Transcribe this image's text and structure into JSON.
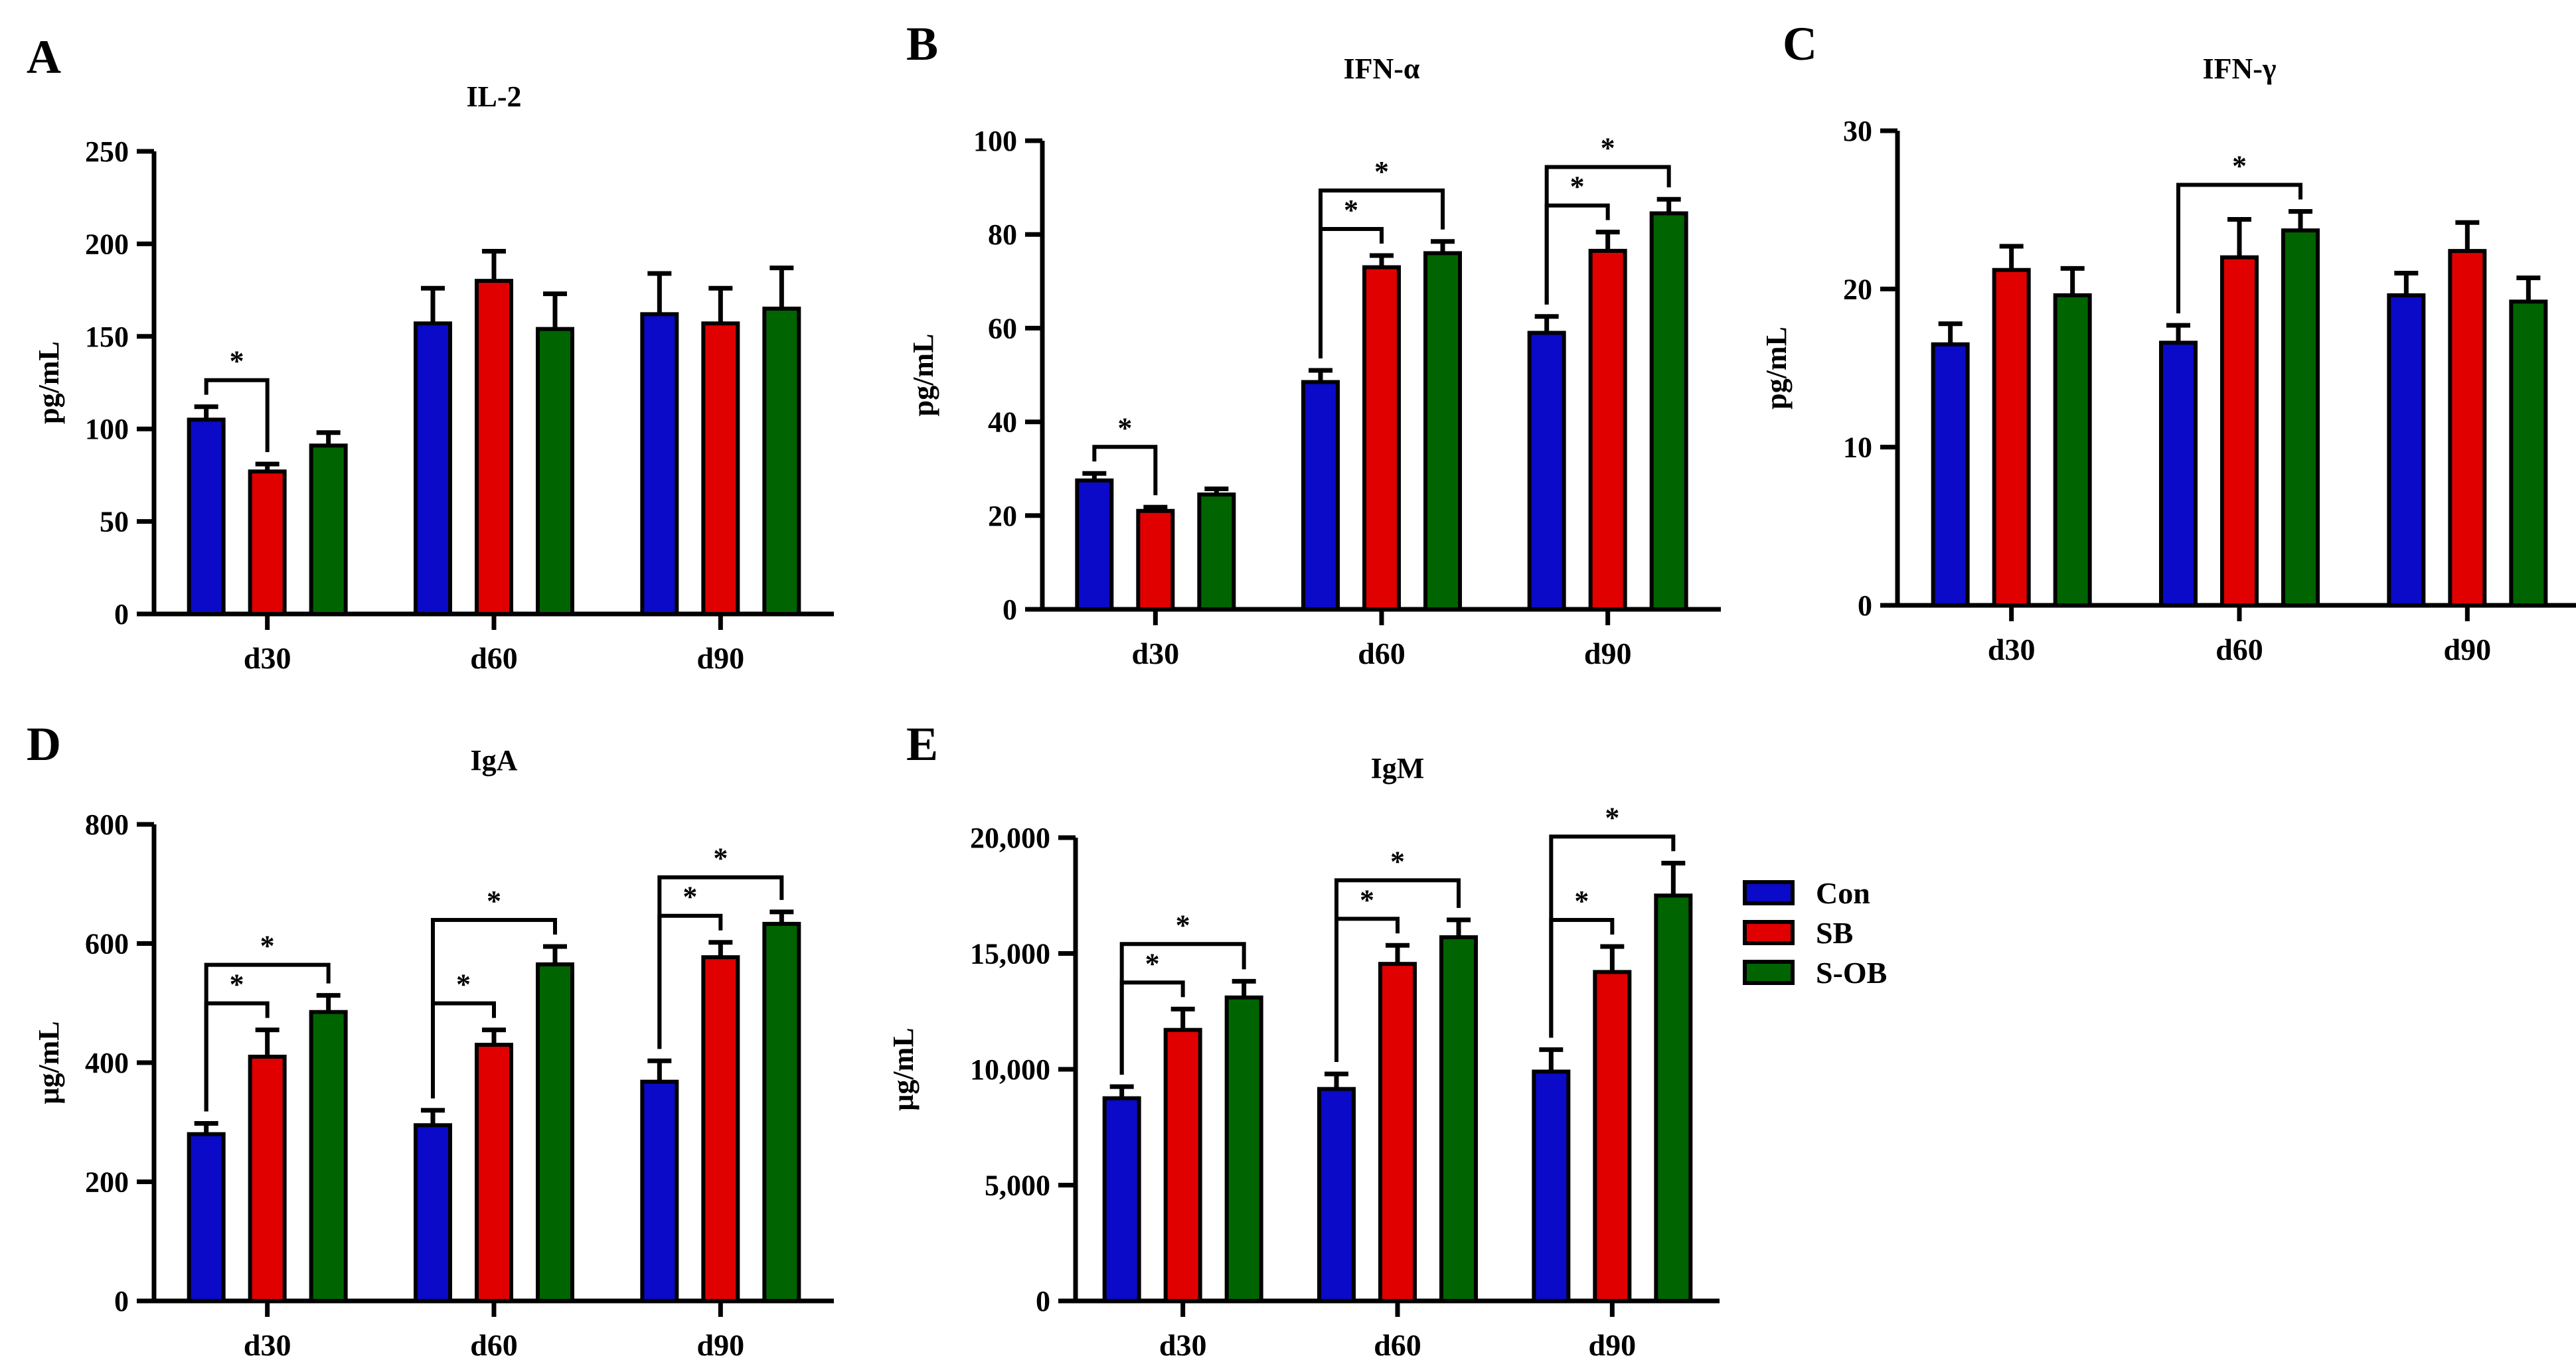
{
  "legend": [
    {
      "label": "Con",
      "color": "#0a0ac8"
    },
    {
      "label": "SB",
      "color": "#e00000"
    },
    {
      "label": "S-OB",
      "color": "#006400"
    }
  ],
  "chart_data": [
    {
      "type": "bar",
      "panel": "A",
      "title": "IL-2",
      "ylabel": "pg/mL",
      "categories": [
        "d30",
        "d60",
        "d90"
      ],
      "ylim": [
        0,
        250
      ],
      "yticks": [
        0,
        50,
        100,
        150,
        200,
        250
      ],
      "ytick_labels": [
        "0",
        "50",
        "100",
        "150",
        "200",
        "250"
      ],
      "series": [
        {
          "name": "Con",
          "values": [
            105,
            157,
            162
          ],
          "errors": [
            7,
            19,
            22
          ]
        },
        {
          "name": "SB",
          "values": [
            77,
            180,
            157
          ],
          "errors": [
            4,
            16,
            19
          ]
        },
        {
          "name": "S-OB",
          "values": [
            91,
            154,
            165
          ],
          "errors": [
            7,
            19,
            22
          ]
        }
      ],
      "significance": [
        {
          "category": "d30",
          "from": "Con",
          "to": "SB",
          "label": "*"
        }
      ]
    },
    {
      "type": "bar",
      "panel": "B",
      "title": "IFN-α",
      "ylabel": "pg/mL",
      "categories": [
        "d30",
        "d60",
        "d90"
      ],
      "ylim": [
        0,
        100
      ],
      "yticks": [
        0,
        20,
        40,
        60,
        80,
        100
      ],
      "ytick_labels": [
        "0",
        "20",
        "40",
        "60",
        "80",
        "100"
      ],
      "series": [
        {
          "name": "Con",
          "values": [
            27.5,
            48.5,
            59
          ],
          "errors": [
            1.5,
            2.5,
            3.5
          ]
        },
        {
          "name": "SB",
          "values": [
            21,
            73,
            76.5
          ],
          "errors": [
            0.8,
            2.5,
            4
          ]
        },
        {
          "name": "S-OB",
          "values": [
            24.5,
            76,
            84.5
          ],
          "errors": [
            1.2,
            2.5,
            3
          ]
        }
      ],
      "significance": [
        {
          "category": "d30",
          "from": "Con",
          "to": "SB",
          "label": "*"
        },
        {
          "category": "d60",
          "from": "Con",
          "to": "SB",
          "label": "*"
        },
        {
          "category": "d60",
          "from": "Con",
          "to": "S-OB",
          "label": "*"
        },
        {
          "category": "d90",
          "from": "Con",
          "to": "SB",
          "label": "*"
        },
        {
          "category": "d90",
          "from": "Con",
          "to": "S-OB",
          "label": "*"
        }
      ]
    },
    {
      "type": "bar",
      "panel": "C",
      "title": "IFN-γ",
      "ylabel": "pg/mL",
      "categories": [
        "d30",
        "d60",
        "d90"
      ],
      "ylim": [
        0,
        30
      ],
      "yticks": [
        0,
        10,
        20,
        30
      ],
      "ytick_labels": [
        "0",
        "10",
        "20",
        "30"
      ],
      "series": [
        {
          "name": "Con",
          "values": [
            16.5,
            16.6,
            19.6
          ],
          "errors": [
            1.3,
            1.1,
            1.4
          ]
        },
        {
          "name": "SB",
          "values": [
            21.2,
            22,
            22.4
          ],
          "errors": [
            1.5,
            2.4,
            1.8
          ]
        },
        {
          "name": "S-OB",
          "values": [
            19.6,
            23.7,
            19.2
          ],
          "errors": [
            1.7,
            1.2,
            1.5
          ]
        }
      ],
      "significance": [
        {
          "category": "d60",
          "from": "Con",
          "to": "S-OB",
          "label": "*"
        }
      ]
    },
    {
      "type": "bar",
      "panel": "D",
      "title": "IgA",
      "ylabel": "μg/mL",
      "categories": [
        "d30",
        "d60",
        "d90"
      ],
      "ylim": [
        0,
        800
      ],
      "yticks": [
        0,
        200,
        400,
        600,
        800
      ],
      "ytick_labels": [
        "0",
        "200",
        "400",
        "600",
        "800"
      ],
      "series": [
        {
          "name": "Con",
          "values": [
            280,
            295,
            368
          ],
          "errors": [
            18,
            25,
            35
          ]
        },
        {
          "name": "SB",
          "values": [
            410,
            430,
            577
          ],
          "errors": [
            45,
            25,
            25
          ]
        },
        {
          "name": "S-OB",
          "values": [
            485,
            565,
            633
          ],
          "errors": [
            28,
            30,
            20
          ]
        }
      ],
      "significance": [
        {
          "category": "d30",
          "from": "Con",
          "to": "SB",
          "label": "*"
        },
        {
          "category": "d30",
          "from": "Con",
          "to": "S-OB",
          "label": "*"
        },
        {
          "category": "d60",
          "from": "Con",
          "to": "SB",
          "label": "*"
        },
        {
          "category": "d60",
          "from": "Con",
          "to": "S-OB",
          "label": "*"
        },
        {
          "category": "d90",
          "from": "Con",
          "to": "SB",
          "label": "*"
        },
        {
          "category": "d90",
          "from": "Con",
          "to": "S-OB",
          "label": "*"
        }
      ]
    },
    {
      "type": "bar",
      "panel": "E",
      "title": "IgM",
      "ylabel": "μg/mL",
      "categories": [
        "d30",
        "d60",
        "d90"
      ],
      "ylim": [
        0,
        20000
      ],
      "yticks": [
        0,
        5000,
        10000,
        15000,
        20000
      ],
      "ytick_labels": [
        "0",
        "5,000",
        "10,000",
        "15,000",
        "20,000"
      ],
      "series": [
        {
          "name": "Con",
          "values": [
            8750,
            9150,
            9900
          ],
          "errors": [
            500,
            650,
            950
          ]
        },
        {
          "name": "SB",
          "values": [
            11700,
            14550,
            14200
          ],
          "errors": [
            900,
            800,
            1100
          ]
        },
        {
          "name": "S-OB",
          "values": [
            13100,
            15700,
            17500
          ],
          "errors": [
            700,
            750,
            1400
          ]
        }
      ],
      "significance": [
        {
          "category": "d30",
          "from": "Con",
          "to": "SB",
          "label": "*"
        },
        {
          "category": "d30",
          "from": "Con",
          "to": "S-OB",
          "label": "*"
        },
        {
          "category": "d60",
          "from": "Con",
          "to": "SB",
          "label": "*"
        },
        {
          "category": "d60",
          "from": "Con",
          "to": "S-OB",
          "label": "*"
        },
        {
          "category": "d90",
          "from": "Con",
          "to": "SB",
          "label": "*"
        },
        {
          "category": "d90",
          "from": "Con",
          "to": "S-OB",
          "label": "*"
        }
      ]
    }
  ]
}
